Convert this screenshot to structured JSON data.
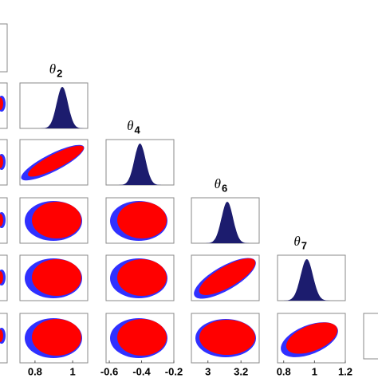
{
  "chart_data": {
    "type": "corner",
    "variables": [
      {
        "symbol": "θ",
        "index": "2",
        "xlim": [
          0.72,
          1.08
        ],
        "xticks": [
          0.8,
          1
        ],
        "mean": 0.945,
        "sd": 0.03
      },
      {
        "symbol": "θ",
        "index": "4",
        "xlim": [
          -0.62,
          -0.2
        ],
        "xticks": [
          -0.6,
          -0.4,
          -0.2
        ],
        "mean": -0.41,
        "sd": 0.035
      },
      {
        "symbol": "θ",
        "index": "6",
        "xlim": [
          2.9,
          3.31
        ],
        "xticks": [
          3,
          3.2
        ],
        "mean": 3.117,
        "sd": 0.035
      },
      {
        "symbol": "θ",
        "index": "7",
        "xlim": [
          0.76,
          1.2
        ],
        "xticks": [
          0.8,
          1,
          1.2
        ],
        "mean": 0.95,
        "sd": 0.04
      }
    ],
    "hist_color": "#1c1c6e"
  }
}
